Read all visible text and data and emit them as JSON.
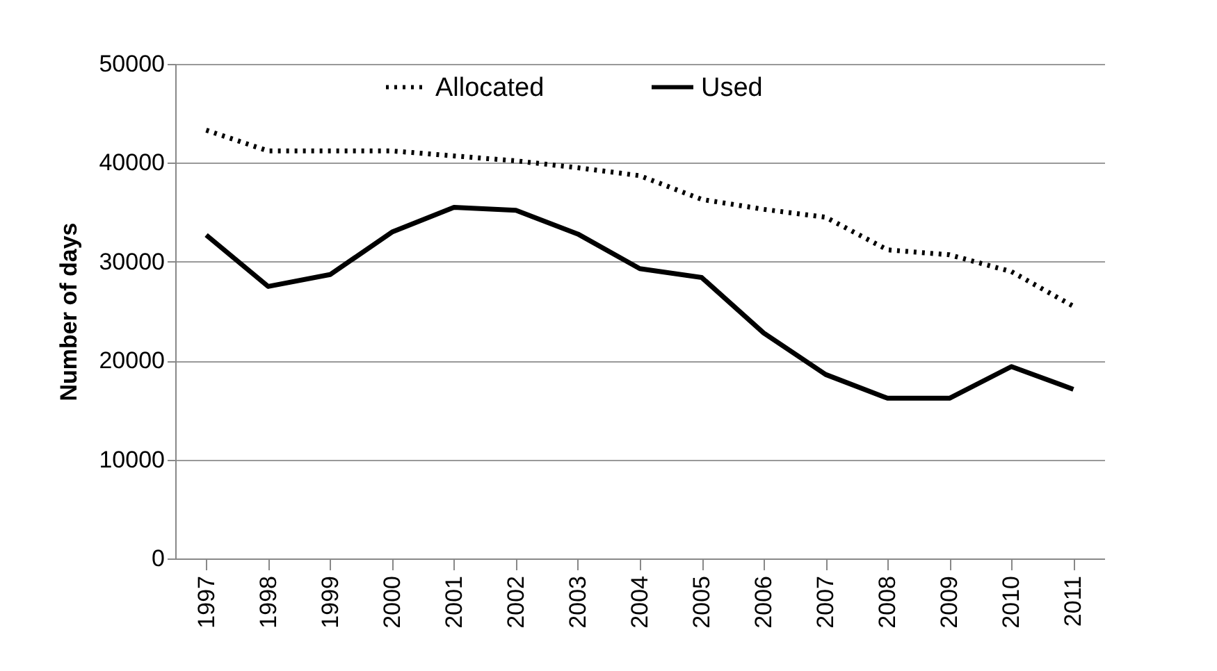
{
  "chart_data": {
    "type": "line",
    "ylabel": "Number of days",
    "categories": [
      "1997",
      "1998",
      "1999",
      "2000",
      "2001",
      "2002",
      "2003",
      "2004",
      "2005",
      "2006",
      "2007",
      "2008",
      "2009",
      "2010",
      "2011"
    ],
    "series": [
      {
        "name": "Allocated",
        "color": "#000000",
        "line_style": "dotted",
        "values": [
          43300,
          41200,
          41200,
          41200,
          40700,
          40200,
          39500,
          38700,
          36300,
          35300,
          34500,
          31200,
          30700,
          29000,
          25500
        ]
      },
      {
        "name": "Used",
        "color": "#000000",
        "line_style": "solid",
        "values": [
          32700,
          27500,
          28700,
          33000,
          35500,
          35200,
          32800,
          29300,
          28400,
          22800,
          18600,
          16200,
          16200,
          19400,
          17100
        ]
      }
    ],
    "ylim": [
      0,
      50000
    ],
    "yticks": [
      0,
      10000,
      20000,
      30000,
      40000,
      50000
    ],
    "grid": "y",
    "legend": "top",
    "marker": "none"
  }
}
